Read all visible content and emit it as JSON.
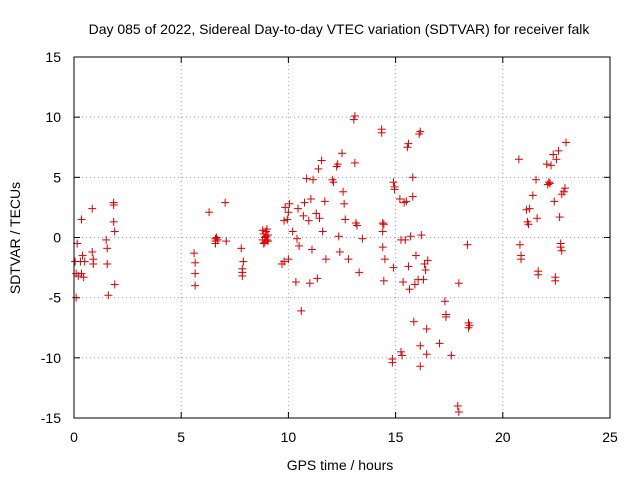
{
  "chart_data": {
    "type": "scatter",
    "title": "Day 085 of 2022, Sidereal Day-to-day VTEC variation (SDTVAR) for receiver falk",
    "xlabel": "GPS time / hours",
    "ylabel": "SDTVAR / TECUs",
    "xlim": [
      0,
      25
    ],
    "ylim": [
      -15,
      15
    ],
    "xticks": [
      0,
      5,
      10,
      15,
      20,
      25
    ],
    "yticks": [
      -15,
      -10,
      -5,
      0,
      5,
      10,
      15
    ],
    "xtick_labels": [
      "0",
      "5",
      "10",
      "15",
      "20",
      "25"
    ],
    "ytick_labels": [
      "-15",
      "-10",
      "-5",
      "0",
      "5",
      "10",
      "15"
    ],
    "grid": true,
    "marker": "plus",
    "color": "#e00000",
    "series": [
      {
        "name": "SDTVAR",
        "points": [
          [
            0.05,
            -2.0
          ],
          [
            0.1,
            -3.0
          ],
          [
            0.1,
            -5.0
          ],
          [
            0.15,
            -0.5
          ],
          [
            0.2,
            -3.2
          ],
          [
            0.3,
            -2.0
          ],
          [
            0.35,
            -3.0
          ],
          [
            0.35,
            1.5
          ],
          [
            0.4,
            -1.5
          ],
          [
            0.45,
            -3.3
          ],
          [
            0.5,
            -2.0
          ],
          [
            0.85,
            2.4
          ],
          [
            0.85,
            -1.2
          ],
          [
            0.9,
            -1.8
          ],
          [
            0.9,
            -2.2
          ],
          [
            1.5,
            -0.2
          ],
          [
            1.55,
            -0.9
          ],
          [
            1.55,
            -2.2
          ],
          [
            1.6,
            -4.8
          ],
          [
            1.85,
            2.7
          ],
          [
            1.85,
            2.9
          ],
          [
            1.85,
            1.3
          ],
          [
            1.9,
            0.5
          ],
          [
            1.9,
            -3.9
          ],
          [
            5.6,
            -1.3
          ],
          [
            5.65,
            -2.1
          ],
          [
            5.65,
            -3.0
          ],
          [
            5.65,
            -4.0
          ],
          [
            6.3,
            2.1
          ],
          [
            6.6,
            -0.1
          ],
          [
            6.6,
            -0.3
          ],
          [
            6.6,
            -0.5
          ],
          [
            6.65,
            0.0
          ],
          [
            6.7,
            -0.2
          ],
          [
            7.05,
            2.9
          ],
          [
            7.1,
            -0.3
          ],
          [
            7.8,
            -0.9
          ],
          [
            7.85,
            -2.6
          ],
          [
            7.85,
            -2.9
          ],
          [
            7.85,
            -3.2
          ],
          [
            7.9,
            -2.0
          ],
          [
            8.8,
            0.6
          ],
          [
            8.8,
            -0.2
          ],
          [
            8.85,
            0.3
          ],
          [
            8.85,
            -0.5
          ],
          [
            8.9,
            0.0
          ],
          [
            8.9,
            -0.4
          ],
          [
            8.95,
            0.5
          ],
          [
            8.95,
            0.1
          ],
          [
            9.0,
            -0.2
          ],
          [
            9.0,
            0.7
          ],
          [
            9.05,
            0.2
          ],
          [
            9.05,
            -0.3
          ],
          [
            9.7,
            -2.2
          ],
          [
            9.8,
            1.4
          ],
          [
            9.8,
            -2.0
          ],
          [
            9.85,
            2.5
          ],
          [
            9.95,
            1.5
          ],
          [
            10.0,
            2.1
          ],
          [
            10.0,
            -1.8
          ],
          [
            10.05,
            2.8
          ],
          [
            10.2,
            0.5
          ],
          [
            10.35,
            -3.7
          ],
          [
            10.4,
            -0.1
          ],
          [
            10.45,
            2.4
          ],
          [
            10.5,
            -0.7
          ],
          [
            10.6,
            -6.1
          ],
          [
            10.7,
            1.8
          ],
          [
            10.75,
            2.9
          ],
          [
            10.85,
            4.9
          ],
          [
            10.95,
            1.4
          ],
          [
            11.0,
            -3.8
          ],
          [
            11.05,
            3.2
          ],
          [
            11.1,
            -1.0
          ],
          [
            11.15,
            4.8
          ],
          [
            11.3,
            2.0
          ],
          [
            11.35,
            -3.4
          ],
          [
            11.4,
            5.7
          ],
          [
            11.45,
            1.6
          ],
          [
            11.55,
            6.4
          ],
          [
            11.6,
            0.5
          ],
          [
            11.7,
            3.0
          ],
          [
            11.75,
            -1.8
          ],
          [
            12.05,
            4.8
          ],
          [
            12.1,
            4.6
          ],
          [
            12.25,
            5.9
          ],
          [
            12.3,
            6.1
          ],
          [
            12.35,
            0.1
          ],
          [
            12.4,
            -1.2
          ],
          [
            12.5,
            7.0
          ],
          [
            12.55,
            3.8
          ],
          [
            12.6,
            2.8
          ],
          [
            12.65,
            1.5
          ],
          [
            12.8,
            -1.8
          ],
          [
            13.05,
            9.8
          ],
          [
            13.1,
            10.1
          ],
          [
            13.1,
            6.2
          ],
          [
            13.15,
            1.2
          ],
          [
            13.2,
            1.0
          ],
          [
            13.3,
            -2.9
          ],
          [
            13.45,
            -0.1
          ],
          [
            14.35,
            9.0
          ],
          [
            14.35,
            8.7
          ],
          [
            14.4,
            1.2
          ],
          [
            14.4,
            0.5
          ],
          [
            14.4,
            -0.8
          ],
          [
            14.45,
            -3.6
          ],
          [
            14.45,
            1.1
          ],
          [
            14.5,
            -1.8
          ],
          [
            14.85,
            -10.1
          ],
          [
            14.85,
            -10.4
          ],
          [
            14.9,
            -2.5
          ],
          [
            14.9,
            4.6
          ],
          [
            14.95,
            4.2
          ],
          [
            14.95,
            4.0
          ],
          [
            15.2,
            3.2
          ],
          [
            15.25,
            -0.2
          ],
          [
            15.25,
            -9.5
          ],
          [
            15.3,
            -9.8
          ],
          [
            15.35,
            -3.7
          ],
          [
            15.4,
            2.9
          ],
          [
            15.45,
            -0.2
          ],
          [
            15.5,
            3.0
          ],
          [
            15.55,
            7.5
          ],
          [
            15.6,
            7.8
          ],
          [
            15.6,
            -2.4
          ],
          [
            15.65,
            -4.3
          ],
          [
            15.7,
            0.1
          ],
          [
            15.8,
            5.0
          ],
          [
            15.8,
            3.4
          ],
          [
            15.85,
            -7.0
          ],
          [
            15.9,
            -3.9
          ],
          [
            15.95,
            -1.5
          ],
          [
            16.05,
            -3.5
          ],
          [
            16.1,
            8.6
          ],
          [
            16.15,
            8.8
          ],
          [
            16.15,
            -9.0
          ],
          [
            16.15,
            -10.7
          ],
          [
            16.2,
            0.2
          ],
          [
            16.3,
            -3.5
          ],
          [
            16.35,
            -2.2
          ],
          [
            16.4,
            -2.7
          ],
          [
            16.45,
            -9.7
          ],
          [
            16.45,
            -7.6
          ],
          [
            16.5,
            -1.9
          ],
          [
            17.05,
            -8.8
          ],
          [
            17.3,
            -5.3
          ],
          [
            17.35,
            -6.4
          ],
          [
            17.35,
            -6.6
          ],
          [
            17.6,
            -9.8
          ],
          [
            17.9,
            -14.0
          ],
          [
            17.95,
            -14.5
          ],
          [
            17.95,
            -3.8
          ],
          [
            18.35,
            -0.6
          ],
          [
            18.4,
            -7.1
          ],
          [
            18.4,
            -7.5
          ],
          [
            18.45,
            -7.3
          ],
          [
            20.75,
            6.5
          ],
          [
            20.8,
            -0.6
          ],
          [
            20.85,
            -1.5
          ],
          [
            20.85,
            -1.8
          ],
          [
            21.1,
            2.3
          ],
          [
            21.15,
            1.3
          ],
          [
            21.2,
            1.1
          ],
          [
            21.25,
            2.4
          ],
          [
            21.4,
            3.5
          ],
          [
            21.55,
            4.8
          ],
          [
            21.6,
            1.6
          ],
          [
            21.65,
            -2.8
          ],
          [
            21.65,
            -3.1
          ],
          [
            22.05,
            6.1
          ],
          [
            22.1,
            4.4
          ],
          [
            22.15,
            4.6
          ],
          [
            22.2,
            4.5
          ],
          [
            22.25,
            6.0
          ],
          [
            22.35,
            6.9
          ],
          [
            22.4,
            3.0
          ],
          [
            22.45,
            -3.3
          ],
          [
            22.45,
            -3.6
          ],
          [
            22.5,
            6.5
          ],
          [
            22.6,
            7.2
          ],
          [
            22.65,
            1.7
          ],
          [
            22.7,
            -0.5
          ],
          [
            22.7,
            -0.8
          ],
          [
            22.75,
            -1.1
          ],
          [
            22.75,
            3.6
          ],
          [
            22.85,
            3.8
          ],
          [
            22.9,
            4.1
          ],
          [
            22.95,
            7.9
          ]
        ]
      }
    ]
  }
}
